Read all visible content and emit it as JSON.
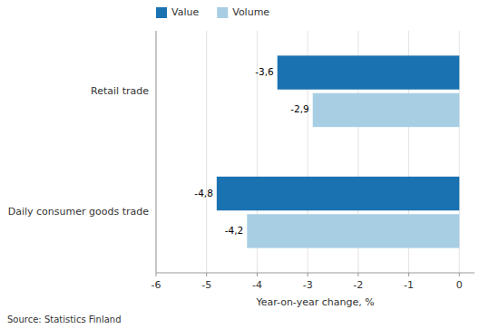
{
  "chart_data": {
    "type": "bar",
    "orientation": "horizontal",
    "categories": [
      "Daily consumer goods trade",
      "Retail trade"
    ],
    "series": [
      {
        "name": "Value",
        "color": "#1B72B0",
        "values": [
          -4.8,
          -3.6
        ],
        "value_labels": [
          "-4,8",
          "-3,6"
        ]
      },
      {
        "name": "Volume",
        "color": "#A8CEE3",
        "values": [
          -4.2,
          -2.9
        ],
        "value_labels": [
          "-4,2",
          "-2,9"
        ]
      }
    ],
    "xlabel": "Year-on-year change, %",
    "xlim": [
      -6,
      0.3
    ],
    "xticks": [
      -6,
      -5,
      -4,
      -3,
      -2,
      -1,
      0
    ],
    "grid": true,
    "legend": "top",
    "data_labels": true,
    "source": "Source: Statistics Finland"
  }
}
